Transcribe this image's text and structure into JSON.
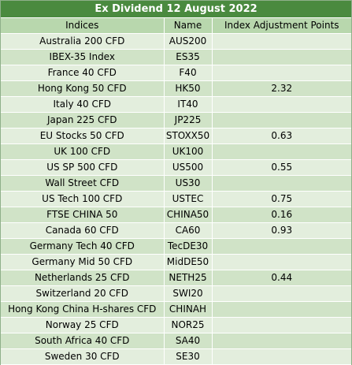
{
  "title": "Ex Dividend 12 August 2022",
  "headers": {
    "indices": "Indices",
    "name": "Name",
    "points": "Index Adjustment Points"
  },
  "rows": [
    {
      "index": "Australia 200 CFD",
      "name": "AUS200",
      "points": ""
    },
    {
      "index": "IBEX-35 Index",
      "name": "ES35",
      "points": ""
    },
    {
      "index": "France 40 CFD",
      "name": "F40",
      "points": ""
    },
    {
      "index": "Hong Kong 50 CFD",
      "name": "HK50",
      "points": "2.32"
    },
    {
      "index": "Italy 40 CFD",
      "name": "IT40",
      "points": ""
    },
    {
      "index": "Japan 225 CFD",
      "name": "JP225",
      "points": ""
    },
    {
      "index": "EU Stocks 50 CFD",
      "name": "STOXX50",
      "points": "0.63"
    },
    {
      "index": "UK 100 CFD",
      "name": "UK100",
      "points": ""
    },
    {
      "index": "US SP 500 CFD",
      "name": "US500",
      "points": "0.55"
    },
    {
      "index": "Wall Street CFD",
      "name": "US30",
      "points": ""
    },
    {
      "index": "US Tech 100 CFD",
      "name": "USTEC",
      "points": "0.75"
    },
    {
      "index": "FTSE CHINA 50",
      "name": "CHINA50",
      "points": "0.16"
    },
    {
      "index": "Canada 60 CFD",
      "name": "CA60",
      "points": "0.93"
    },
    {
      "index": "Germany Tech 40 CFD",
      "name": "TecDE30",
      "points": ""
    },
    {
      "index": "Germany Mid 50 CFD",
      "name": "MidDE50",
      "points": ""
    },
    {
      "index": "Netherlands 25 CFD",
      "name": "NETH25",
      "points": "0.44"
    },
    {
      "index": "Switzerland 20 CFD",
      "name": "SWI20",
      "points": ""
    },
    {
      "index": "Hong Kong China H-shares CFD",
      "name": "CHINAH",
      "points": ""
    },
    {
      "index": "Norway 25 CFD",
      "name": "NOR25",
      "points": ""
    },
    {
      "index": "South Africa 40 CFD",
      "name": "SA40",
      "points": ""
    },
    {
      "index": "Sweden 30 CFD",
      "name": "SE30",
      "points": ""
    }
  ]
}
